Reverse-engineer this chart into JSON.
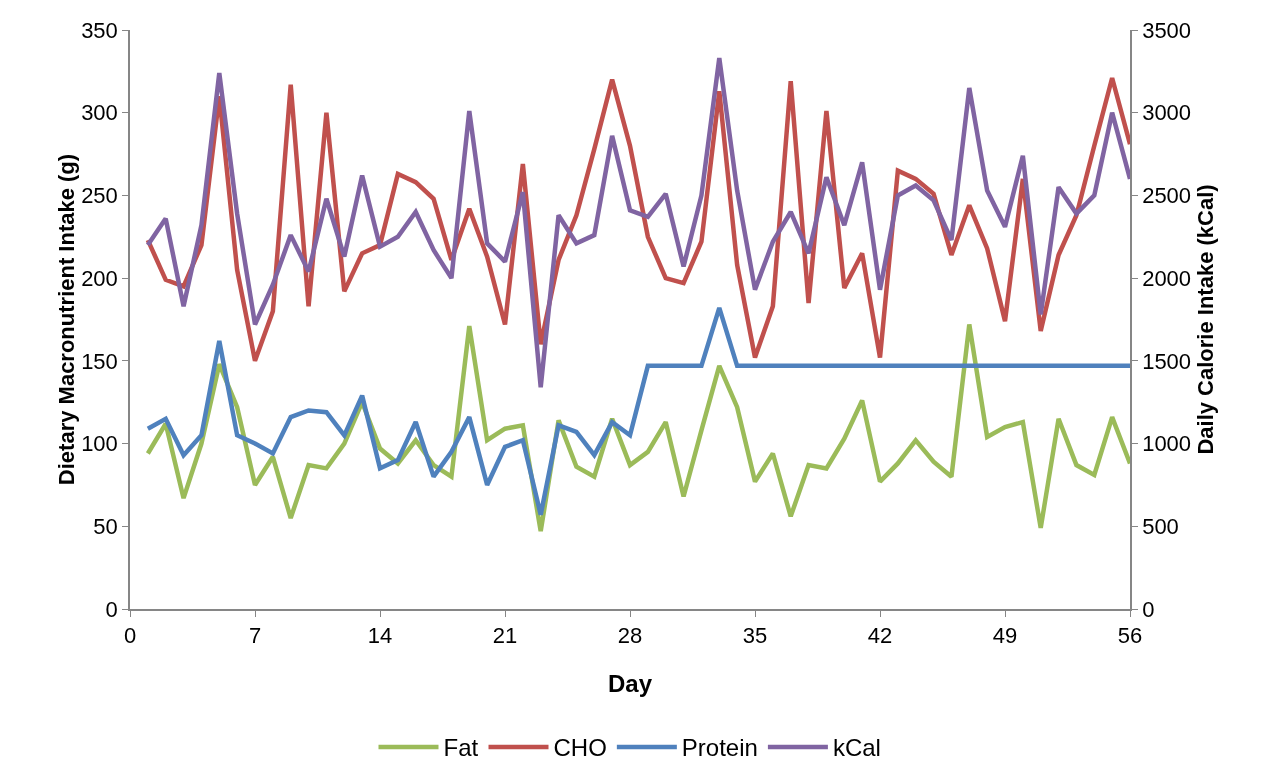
{
  "chart_data": {
    "type": "line",
    "xlabel": "Day",
    "ylabel": "Dietary Macronutrient Intake (g)",
    "y2label": "Daily Calorie Intake (kCal)",
    "x": [
      1,
      2,
      3,
      4,
      5,
      6,
      7,
      8,
      9,
      10,
      11,
      12,
      13,
      14,
      15,
      16,
      17,
      18,
      19,
      20,
      21,
      22,
      23,
      24,
      25,
      26,
      27,
      28,
      29,
      30,
      31,
      32,
      33,
      34,
      35,
      36,
      37,
      38,
      39,
      40,
      41,
      42,
      43,
      44,
      45,
      46,
      47,
      48,
      49,
      50,
      51,
      52,
      53,
      54,
      55,
      56
    ],
    "xlim": [
      0,
      56
    ],
    "xticks": [
      0,
      7,
      14,
      21,
      28,
      35,
      42,
      49,
      56
    ],
    "ylim": [
      0,
      350
    ],
    "yticks": [
      0,
      50,
      100,
      150,
      200,
      250,
      300,
      350
    ],
    "y2lim": [
      0,
      3500
    ],
    "y2ticks": [
      0,
      500,
      1000,
      1500,
      2000,
      2500,
      3000,
      3500
    ],
    "grid": false,
    "legend": "bottom",
    "marker": "none",
    "line_style": "solid",
    "series": [
      {
        "name": "Fat",
        "color": "#9bbb59",
        "values": [
          94,
          112,
          67,
          100,
          148,
          122,
          75,
          92,
          55,
          87,
          85,
          100,
          125,
          97,
          88,
          102,
          87,
          80,
          171,
          102,
          109,
          111,
          47,
          114,
          86,
          80,
          115,
          87,
          95,
          113,
          68,
          108,
          147,
          122,
          77,
          94,
          56,
          87,
          85,
          103,
          126,
          77,
          88,
          102,
          89,
          80,
          172,
          104,
          110,
          113,
          49,
          115,
          87,
          81,
          116,
          88
        ]
      },
      {
        "name": "CHO",
        "color": "#c0504d",
        "values": [
          223,
          199,
          195,
          220,
          310,
          205,
          150,
          180,
          317,
          183,
          300,
          192,
          215,
          220,
          263,
          258,
          248,
          211,
          242,
          213,
          172,
          269,
          160,
          211,
          238,
          278,
          320,
          280,
          225,
          200,
          197,
          222,
          313,
          208,
          152,
          183,
          319,
          185,
          301,
          194,
          215,
          152,
          265,
          260,
          251,
          214,
          244,
          218,
          174,
          260,
          168,
          214,
          238,
          280,
          321,
          281
        ]
      },
      {
        "name": "Protein",
        "color": "#4f81bd",
        "values": [
          109,
          115,
          93,
          105,
          162,
          105,
          100,
          94,
          116,
          120,
          119,
          105,
          129,
          85,
          90,
          113,
          80,
          95,
          116,
          75,
          98,
          102,
          57,
          111,
          107,
          93,
          113,
          105,
          147,
          147,
          147,
          147,
          182,
          147,
          147,
          147,
          147,
          147,
          147,
          147,
          147,
          147,
          147,
          147,
          147,
          147,
          147,
          147,
          147,
          147,
          147,
          147,
          147,
          147,
          147,
          147
        ]
      },
      {
        "name": "kCal",
        "color": "#8064a2",
        "axis": "y2",
        "values": [
          2200,
          2360,
          1830,
          2320,
          3240,
          2390,
          1720,
          1960,
          2260,
          2040,
          2480,
          2130,
          2620,
          2190,
          2250,
          2400,
          2170,
          2000,
          3010,
          2210,
          2100,
          2520,
          1340,
          2380,
          2210,
          2260,
          2860,
          2410,
          2370,
          2510,
          2070,
          2500,
          3330,
          2530,
          1930,
          2220,
          2400,
          2150,
          2610,
          2320,
          2700,
          1930,
          2500,
          2560,
          2470,
          2230,
          3150,
          2530,
          2310,
          2740,
          1780,
          2550,
          2390,
          2500,
          3000,
          2600
        ]
      }
    ]
  }
}
